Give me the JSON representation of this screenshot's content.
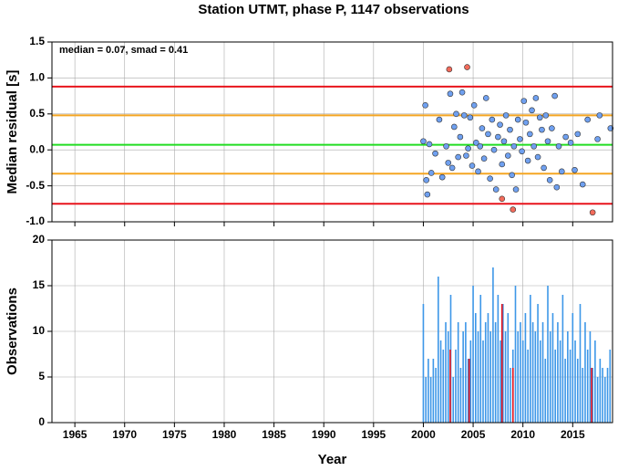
{
  "title": "Station UTMT, phase P, 1147 observations",
  "chart_data": [
    {
      "type": "scatter",
      "ylabel": "Median residual [s]",
      "annotation": "median = 0.07, smad = 0.41",
      "xlim": [
        1962.7,
        2019
      ],
      "xticks": [
        1965,
        1970,
        1975,
        1980,
        1985,
        1990,
        1995,
        2000,
        2005,
        2010,
        2015
      ],
      "show_xtick_labels": false,
      "ylim": [
        -1,
        1.5
      ],
      "yticks": [
        {
          "value": -1,
          "label": "-1.0"
        },
        {
          "value": -0.5,
          "label": "-0.5"
        },
        {
          "value": 0,
          "label": "0.0"
        },
        {
          "value": 0.5,
          "label": "0.5"
        },
        {
          "value": 1,
          "label": "1.0"
        },
        {
          "value": 1.5,
          "label": "1.5"
        }
      ],
      "grid": true,
      "hlines": [
        {
          "value": 0.88,
          "color": "#e8141c"
        },
        {
          "value": -0.75,
          "color": "#e8141c"
        },
        {
          "value": 0.48,
          "color": "#f5a623"
        },
        {
          "value": -0.33,
          "color": "#f5a623"
        },
        {
          "value": 0.07,
          "color": "#22dd22"
        }
      ],
      "series": [
        {
          "color": "#6fa0f0",
          "x": [
            2000.0,
            2000.2,
            2000.3,
            2000.4,
            2000.6,
            2000.8,
            2001.2,
            2001.6,
            2001.9,
            2002.3,
            2002.5,
            2002.7,
            2002.9,
            2003.1,
            2003.3,
            2003.5,
            2003.7,
            2003.9,
            2004.1,
            2004.3,
            2004.5,
            2004.7,
            2004.9,
            2005.1,
            2005.3,
            2005.5,
            2005.7,
            2005.9,
            2006.1,
            2006.3,
            2006.5,
            2006.7,
            2006.9,
            2007.1,
            2007.3,
            2007.5,
            2007.7,
            2007.9,
            2008.1,
            2008.3,
            2008.5,
            2008.7,
            2008.9,
            2009.1,
            2009.3,
            2009.5,
            2009.7,
            2009.9,
            2010.1,
            2010.3,
            2010.5,
            2010.7,
            2010.9,
            2011.1,
            2011.3,
            2011.5,
            2011.7,
            2011.9,
            2012.1,
            2012.3,
            2012.5,
            2012.7,
            2012.9,
            2013.2,
            2013.4,
            2013.6,
            2013.9,
            2014.3,
            2014.8,
            2015.2,
            2015.5,
            2016.0,
            2016.5,
            2017.5,
            2017.7,
            2018.8
          ],
          "values": [
            0.12,
            0.62,
            -0.42,
            -0.62,
            0.08,
            -0.32,
            -0.05,
            0.42,
            -0.38,
            0.05,
            -0.18,
            0.78,
            -0.25,
            0.32,
            0.5,
            -0.1,
            0.18,
            0.8,
            0.48,
            -0.08,
            0.02,
            0.45,
            -0.22,
            0.62,
            0.1,
            -0.3,
            0.05,
            0.3,
            -0.12,
            0.72,
            0.22,
            -0.4,
            0.42,
            0.0,
            -0.55,
            0.18,
            0.35,
            -0.2,
            0.12,
            0.48,
            -0.08,
            0.28,
            -0.35,
            0.05,
            -0.55,
            0.42,
            0.15,
            -0.02,
            0.68,
            0.38,
            -0.15,
            0.22,
            0.55,
            0.05,
            0.72,
            -0.1,
            0.45,
            0.28,
            -0.25,
            0.48,
            0.12,
            -0.42,
            0.3,
            0.75,
            -0.52,
            0.05,
            -0.3,
            0.18,
            0.1,
            -0.28,
            0.22,
            -0.48,
            0.42,
            0.15,
            0.48,
            0.3
          ]
        },
        {
          "color": "#f26b5b",
          "x": [
            2002.6,
            2004.4,
            2007.9,
            2009.0,
            2017.0
          ],
          "values": [
            1.12,
            1.15,
            -0.68,
            -0.83,
            -0.87
          ]
        }
      ]
    },
    {
      "type": "bar",
      "ylabel": "Observations",
      "xlabel": "Year",
      "xlim": [
        1962.7,
        2019
      ],
      "xticks": [
        1965,
        1970,
        1975,
        1980,
        1985,
        1990,
        1995,
        2000,
        2005,
        2010,
        2015
      ],
      "show_xtick_labels": true,
      "ylim": [
        0,
        20
      ],
      "yticks": [
        0,
        5,
        10,
        15,
        20
      ],
      "grid": true,
      "series": [
        {
          "color": "#3d97e8",
          "x": [
            2000.0,
            2000.25,
            2000.5,
            2000.75,
            2001.0,
            2001.25,
            2001.5,
            2001.75,
            2002.0,
            2002.25,
            2002.5,
            2002.75,
            2003.0,
            2003.25,
            2003.5,
            2003.75,
            2004.0,
            2004.25,
            2004.5,
            2004.75,
            2005.0,
            2005.25,
            2005.5,
            2005.75,
            2006.0,
            2006.25,
            2006.5,
            2006.75,
            2007.0,
            2007.25,
            2007.5,
            2007.75,
            2008.0,
            2008.25,
            2008.5,
            2008.75,
            2009.0,
            2009.25,
            2009.5,
            2009.75,
            2010.0,
            2010.25,
            2010.5,
            2010.75,
            2011.0,
            2011.25,
            2011.5,
            2011.75,
            2012.0,
            2012.25,
            2012.5,
            2012.75,
            2013.0,
            2013.25,
            2013.5,
            2013.75,
            2014.0,
            2014.25,
            2014.5,
            2014.75,
            2015.0,
            2015.25,
            2015.5,
            2015.75,
            2016.0,
            2016.25,
            2016.5,
            2016.75,
            2017.0,
            2017.25,
            2017.5,
            2017.75,
            2018.0,
            2018.25,
            2018.5,
            2018.75
          ],
          "values": [
            13,
            5,
            7,
            5,
            7,
            6,
            16,
            9,
            8,
            11,
            10,
            14,
            5,
            8,
            11,
            6,
            10,
            11,
            7,
            9,
            15,
            12,
            10,
            14,
            9,
            11,
            12,
            10,
            17,
            11,
            14,
            9,
            13,
            10,
            12,
            6,
            8,
            15,
            10,
            11,
            9,
            12,
            8,
            14,
            11,
            10,
            13,
            9,
            11,
            7,
            15,
            10,
            12,
            8,
            11,
            9,
            14,
            7,
            10,
            8,
            12,
            9,
            7,
            13,
            6,
            11,
            8,
            10,
            6,
            9,
            5,
            7,
            6,
            5,
            6,
            8
          ]
        },
        {
          "color": "#e8141c",
          "x": [
            2002.7,
            2004.6,
            2007.9,
            2009.0,
            2016.9
          ],
          "values": [
            8,
            7,
            13,
            6,
            6
          ]
        }
      ]
    }
  ]
}
